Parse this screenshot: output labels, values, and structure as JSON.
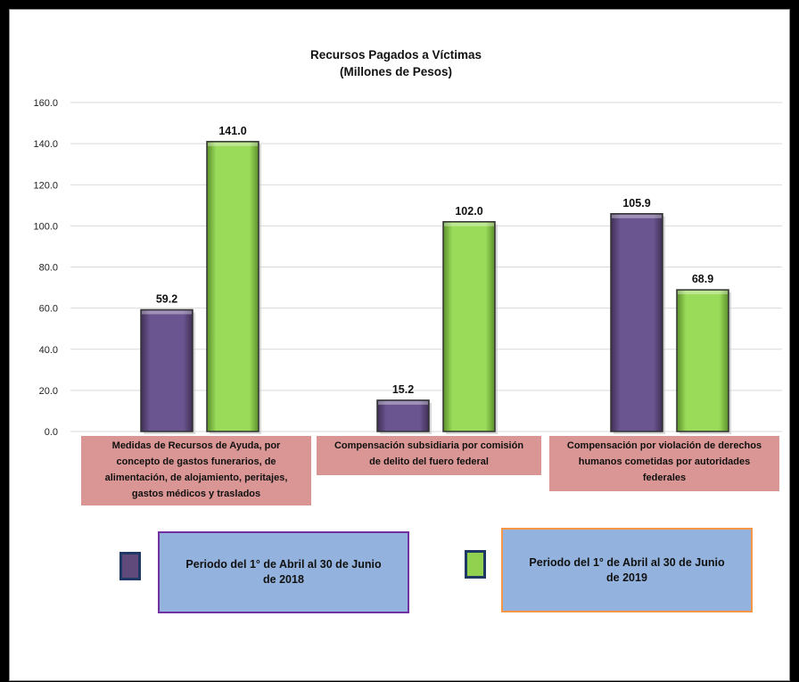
{
  "chart_data": {
    "type": "bar",
    "title": "Recursos Pagados a Víctimas",
    "subtitle": "(Millones de Pesos)",
    "ylim": [
      0,
      160
    ],
    "y_ticks": [
      "0.0",
      "20.0",
      "40.0",
      "60.0",
      "80.0",
      "100.0",
      "120.0",
      "140.0",
      "160.0"
    ],
    "grid": true,
    "categories": [
      [
        "Medidas de Recursos de Ayuda, por",
        "concepto de gastos funerarios, de",
        "alimentación, de alojamiento, peritajes,",
        "gastos médicos y traslados"
      ],
      [
        "Compensación subsidiaria por comisión",
        "de delito del fuero federal"
      ],
      [
        "Compensación por violación de derechos",
        "humanos cometidas por autoridades",
        "federales"
      ]
    ],
    "series": [
      {
        "name": "Periodo del 1° de Abril al 30 de Junio de 2018",
        "legend_lines": [
          "Periodo del 1° de Abril al 30 de Junio",
          "de 2018"
        ],
        "values": [
          59.2,
          15.2,
          105.9
        ],
        "labels": [
          "59.2",
          "15.2",
          "105.9"
        ],
        "color": "#604a7b",
        "legend_border": "#7030a0"
      },
      {
        "name": "Periodo del 1° de Abril al 30 de Junio de 2019",
        "legend_lines": [
          "Periodo del 1° de Abril al 30 de Junio",
          "de 2019"
        ],
        "values": [
          141.0,
          102.0,
          68.9
        ],
        "labels": [
          "141.0",
          "102.0",
          "68.9"
        ],
        "color": "#92d050",
        "legend_border": "#f79646"
      }
    ],
    "legend_placement": "bottom",
    "category_label_bg": "#da9694"
  }
}
